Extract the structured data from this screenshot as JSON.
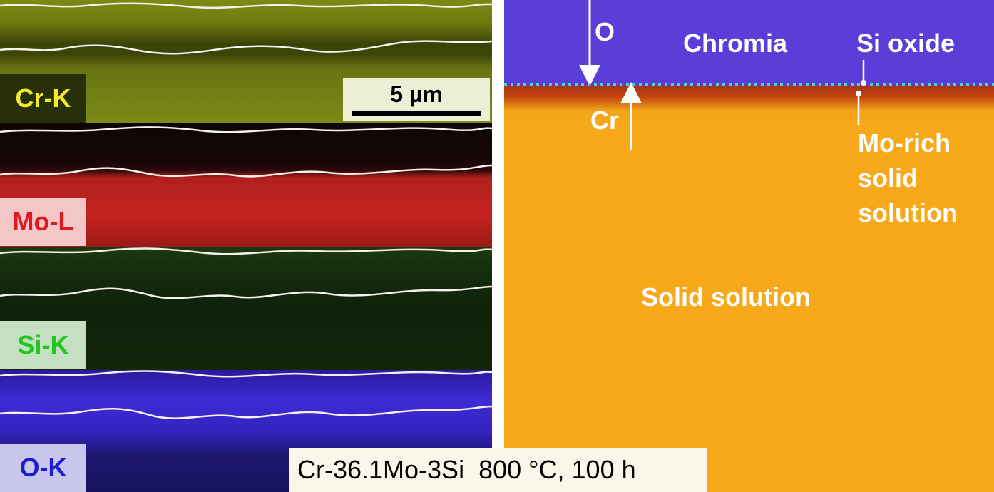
{
  "left_panels": {
    "cr_label": "Cr-K",
    "mo_label": "Mo-L",
    "si_label": "Si-K",
    "o_label": "O-K"
  },
  "scale_bar": {
    "label": "5 µm"
  },
  "schematic": {
    "o_label": "O",
    "cr_label": "Cr",
    "chromia_label": "Chromia",
    "si_oxide_label": "Si oxide",
    "mo_rich_line1": "Mo-rich",
    "mo_rich_line2": "solid",
    "mo_rich_line3": "solution",
    "solid_solution_label": "Solid solution"
  },
  "caption": {
    "text": "Cr-36.1Mo-3Si  800 °C, 100 h"
  },
  "colors": {
    "cr_map": "#7c8a14",
    "mo_map": "#c3231f",
    "si_map": "#12260c",
    "o_map": "#3c2bd6",
    "chromia_layer": "#5b3ed8",
    "solid_solution": "#f7a91a",
    "si_oxide_dots": "#4fd2c8"
  }
}
